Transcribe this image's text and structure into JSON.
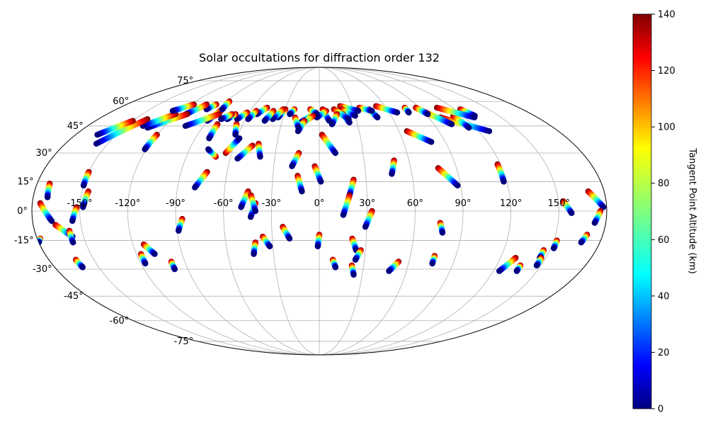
{
  "chart_data": {
    "type": "scatter",
    "projection": "mollweide",
    "title": "Solar occultations for diffraction order 132",
    "lon_ticks": [
      -150,
      -120,
      -90,
      -60,
      -30,
      0,
      30,
      60,
      90,
      120,
      150
    ],
    "lon_tick_labels": [
      "-150°",
      "-120°",
      "-90°",
      "-60°",
      "-30°",
      "0°",
      "30°",
      "60°",
      "90°",
      "120°",
      "150°"
    ],
    "lat_ticks": [
      75,
      60,
      45,
      30,
      15,
      0,
      -15,
      -30,
      -45,
      -60,
      -75
    ],
    "lat_tick_labels": [
      "75°",
      "60°",
      "45°",
      "30°",
      "15°",
      "0°",
      "-15°",
      "-30°",
      "-45°",
      "-60°",
      "-75°"
    ],
    "grid": true,
    "colorbar": {
      "label": "Tangent Point Altitude (km)",
      "range": [
        0,
        140
      ],
      "ticks": [
        0,
        20,
        40,
        60,
        80,
        100,
        120,
        140
      ],
      "tick_labels": [
        "0",
        "20",
        "40",
        "60",
        "80",
        "100",
        "120",
        "140"
      ],
      "colormap": "jet"
    },
    "occultations": [
      {
        "start": [
          -175,
          4
        ],
        "end": [
          -168,
          -5
        ]
      },
      {
        "start": [
          -166,
          -7
        ],
        "end": [
          -157,
          -13
        ]
      },
      {
        "start": [
          -172,
          14
        ],
        "end": [
          -171,
          7
        ]
      },
      {
        "start": [
          -152,
          2
        ],
        "end": [
          -155,
          -5
        ]
      },
      {
        "start": [
          -158,
          -10
        ],
        "end": [
          -158,
          -16
        ]
      },
      {
        "start": [
          -146,
          10
        ],
        "end": [
          -148,
          2
        ]
      },
      {
        "start": [
          -150,
          20
        ],
        "end": [
          -150,
          13
        ]
      },
      {
        "start": [
          -162,
          -25
        ],
        "end": [
          -161,
          -29
        ]
      },
      {
        "start": [
          -178,
          -14
        ],
        "end": [
          -180,
          -16
        ]
      },
      {
        "start": [
          -120,
          40
        ],
        "end": [
          -121,
          32
        ]
      },
      {
        "start": [
          -113,
          -17
        ],
        "end": [
          -108,
          -22
        ]
      },
      {
        "start": [
          -117,
          -22
        ],
        "end": [
          -117,
          -27
        ]
      },
      {
        "start": [
          -99,
          -26
        ],
        "end": [
          -99,
          -30
        ]
      },
      {
        "start": [
          -86,
          -4
        ],
        "end": [
          -89,
          -10
        ]
      },
      {
        "start": [
          -73,
          20
        ],
        "end": [
          -79,
          12
        ]
      },
      {
        "start": [
          -45,
          10
        ],
        "end": [
          -49,
          2
        ]
      },
      {
        "start": [
          -40,
          4
        ],
        "end": [
          -43,
          -3
        ]
      },
      {
        "start": [
          -43,
          8
        ],
        "end": [
          -40,
          0
        ]
      },
      {
        "start": [
          -41,
          -16
        ],
        "end": [
          -43,
          -22
        ]
      },
      {
        "start": [
          -36,
          -13
        ],
        "end": [
          -32,
          -18
        ]
      },
      {
        "start": [
          -23,
          -8
        ],
        "end": [
          -19,
          -14
        ]
      },
      {
        "start": [
          -14,
          18
        ],
        "end": [
          -11,
          10
        ]
      },
      {
        "start": [
          -14,
          30
        ],
        "end": [
          -18,
          23
        ]
      },
      {
        "start": [
          -43,
          35
        ],
        "end": [
          -40,
          28
        ]
      },
      {
        "start": [
          -47,
          34
        ],
        "end": [
          -55,
          27
        ]
      },
      {
        "start": [
          -70,
          28
        ],
        "end": [
          -77,
          32
        ]
      },
      {
        "start": [
          -64,
          30
        ],
        "end": [
          -58,
          38
        ]
      },
      {
        "start": [
          2,
          40
        ],
        "end": [
          11,
          30
        ]
      },
      {
        "start": [
          -3,
          23
        ],
        "end": [
          1,
          15
        ]
      },
      {
        "start": [
          0,
          -12
        ],
        "end": [
          -1,
          -18
        ]
      },
      {
        "start": [
          22,
          16
        ],
        "end": [
          19,
          8
        ]
      },
      {
        "start": [
          19,
          8
        ],
        "end": [
          15,
          -2
        ]
      },
      {
        "start": [
          33,
          0
        ],
        "end": [
          29,
          -8
        ]
      },
      {
        "start": [
          21,
          -14
        ],
        "end": [
          24,
          -20
        ]
      },
      {
        "start": [
          27,
          -20
        ],
        "end": [
          24,
          -25
        ]
      },
      {
        "start": [
          22,
          -28
        ],
        "end": [
          24,
          -33
        ]
      },
      {
        "start": [
          9,
          -25
        ],
        "end": [
          11,
          -29
        ]
      },
      {
        "start": [
          50,
          26
        ],
        "end": [
          47,
          19
        ]
      },
      {
        "start": [
          53,
          -26
        ],
        "end": [
          48,
          -31
        ]
      },
      {
        "start": [
          78,
          22
        ],
        "end": [
          88,
          13
        ]
      },
      {
        "start": [
          76,
          -6
        ],
        "end": [
          78,
          -11
        ]
      },
      {
        "start": [
          76,
          -23
        ],
        "end": [
          76,
          -27
        ]
      },
      {
        "start": [
          118,
          24
        ],
        "end": [
          118,
          15
        ]
      },
      {
        "start": [
          66,
          42
        ],
        "end": [
          80,
          36
        ]
      },
      {
        "start": [
          153,
          5
        ],
        "end": [
          158,
          -1
        ]
      },
      {
        "start": [
          152,
          -15
        ],
        "end": [
          152,
          -19
        ]
      },
      {
        "start": [
          146,
          -20
        ],
        "end": [
          146,
          -24
        ]
      },
      {
        "start": [
          147,
          -24
        ],
        "end": [
          147,
          -28
        ]
      },
      {
        "start": [
          136,
          -28
        ],
        "end": [
          136,
          -31
        ]
      },
      {
        "start": [
          130,
          -24
        ],
        "end": [
          124,
          -31
        ]
      },
      {
        "start": [
          170,
          10
        ],
        "end": [
          178,
          2
        ]
      },
      {
        "start": [
          170,
          -12
        ],
        "end": [
          168,
          -16
        ]
      },
      {
        "start": [
          176,
          0
        ],
        "end": [
          173,
          -6
        ]
      },
      {
        "start": [
          100,
          50
        ],
        "end": [
          128,
          42
        ]
      },
      {
        "start": [
          112,
          51
        ],
        "end": [
          115,
          44
        ]
      },
      {
        "start": [
          125,
          55
        ],
        "end": [
          130,
          51
        ]
      },
      {
        "start": [
          106,
          56
        ],
        "end": [
          128,
          50
        ]
      },
      {
        "start": [
          90,
          54
        ],
        "end": [
          104,
          46
        ]
      },
      {
        "start": [
          77,
          56
        ],
        "end": [
          77,
          53
        ]
      },
      {
        "start": [
          87,
          56
        ],
        "end": [
          92,
          52
        ]
      },
      {
        "start": [
          52,
          57
        ],
        "end": [
          67,
          53
        ]
      },
      {
        "start": [
          44,
          55
        ],
        "end": [
          48,
          50
        ]
      },
      {
        "start": [
          36,
          56
        ],
        "end": [
          46,
          54
        ]
      },
      {
        "start": [
          19,
          57
        ],
        "end": [
          34,
          54
        ]
      },
      {
        "start": [
          20,
          55
        ],
        "end": [
          30,
          51
        ]
      },
      {
        "start": [
          20,
          52
        ],
        "end": [
          24,
          47
        ]
      },
      {
        "start": [
          13,
          55
        ],
        "end": [
          24,
          49
        ]
      },
      {
        "start": [
          15,
          52
        ],
        "end": [
          10,
          46
        ]
      },
      {
        "start": [
          3,
          55
        ],
        "end": [
          8,
          48
        ]
      },
      {
        "start": [
          6,
          54
        ],
        "end": [
          -2,
          50
        ]
      },
      {
        "start": [
          -3,
          53
        ],
        "end": [
          -15,
          47
        ]
      },
      {
        "start": [
          -8,
          55
        ],
        "end": [
          -2,
          52
        ]
      },
      {
        "start": [
          -5,
          51
        ],
        "end": [
          -16,
          45
        ]
      },
      {
        "start": [
          -12,
          48
        ],
        "end": [
          -16,
          42
        ]
      },
      {
        "start": [
          -20,
          50
        ],
        "end": [
          -16,
          44
        ]
      },
      {
        "start": [
          -22,
          55
        ],
        "end": [
          -25,
          52
        ]
      },
      {
        "start": [
          -30,
          55
        ],
        "end": [
          -34,
          50
        ]
      },
      {
        "start": [
          -32,
          55
        ],
        "end": [
          -38,
          49
        ]
      },
      {
        "start": [
          -40,
          54
        ],
        "end": [
          -44,
          48
        ]
      },
      {
        "start": [
          -47,
          56
        ],
        "end": [
          -53,
          52
        ]
      },
      {
        "start": [
          -55,
          54
        ],
        "end": [
          -58,
          49
        ]
      },
      {
        "start": [
          -62,
          53
        ],
        "end": [
          -67,
          49
        ]
      },
      {
        "start": [
          -71,
          52
        ],
        "end": [
          -75,
          49
        ]
      },
      {
        "start": [
          -65,
          46
        ],
        "end": [
          -62,
          40
        ]
      },
      {
        "start": [
          -74,
          52
        ],
        "end": [
          -80,
          49
        ]
      },
      {
        "start": [
          -80,
          46
        ],
        "end": [
          -80,
          38
        ]
      },
      {
        "start": [
          -86,
          54
        ],
        "end": [
          -90,
          48
        ]
      },
      {
        "start": [
          -87,
          60
        ],
        "end": [
          -86,
          55
        ]
      },
      {
        "start": [
          -85,
          52
        ],
        "end": [
          -104,
          45
        ]
      },
      {
        "start": [
          -96,
          58
        ],
        "end": [
          -100,
          55
        ]
      },
      {
        "start": [
          -105,
          58
        ],
        "end": [
          -113,
          52
        ]
      },
      {
        "start": [
          -112,
          52
        ],
        "end": [
          -132,
          44
        ]
      },
      {
        "start": [
          -122,
          52
        ],
        "end": [
          -137,
          45
        ]
      },
      {
        "start": [
          -117,
          58
        ],
        "end": [
          -128,
          54
        ]
      },
      {
        "start": [
          -140,
          49
        ],
        "end": [
          -158,
          35
        ]
      },
      {
        "start": [
          -150,
          48
        ],
        "end": [
          -164,
          40
        ]
      }
    ]
  }
}
